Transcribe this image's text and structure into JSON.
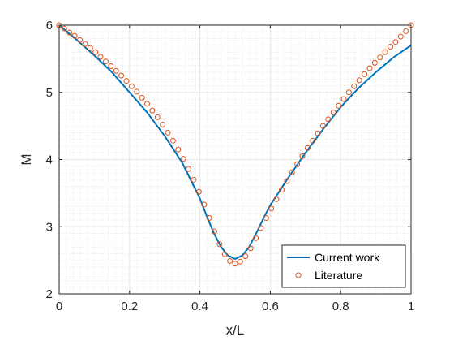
{
  "chart_data": {
    "type": "line",
    "xlabel": "x/L",
    "ylabel": "M",
    "xlim": [
      0,
      1
    ],
    "ylim": [
      2,
      6
    ],
    "x_ticks": [
      "0",
      "0.2",
      "0.4",
      "0.6",
      "0.8",
      "1"
    ],
    "y_ticks": [
      "2",
      "3",
      "4",
      "5",
      "6"
    ],
    "grid": true,
    "minor_grid": true,
    "legend_position": "bottom-right",
    "series": [
      {
        "name": "Current work",
        "style": "line",
        "color": "#0072BD",
        "x": [
          0,
          0.05,
          0.1,
          0.15,
          0.2,
          0.25,
          0.3,
          0.35,
          0.4,
          0.42,
          0.44,
          0.46,
          0.48,
          0.5,
          0.52,
          0.54,
          0.56,
          0.58,
          0.6,
          0.65,
          0.7,
          0.75,
          0.8,
          0.85,
          0.9,
          0.95,
          1.0
        ],
        "y": [
          6.0,
          5.78,
          5.55,
          5.3,
          5.0,
          4.7,
          4.35,
          3.95,
          3.42,
          3.15,
          2.9,
          2.7,
          2.57,
          2.52,
          2.57,
          2.7,
          2.9,
          3.12,
          3.32,
          3.72,
          4.1,
          4.45,
          4.78,
          5.06,
          5.3,
          5.52,
          5.7
        ]
      },
      {
        "name": "Literature",
        "style": "marker",
        "color": "#D95319",
        "x": [
          0,
          0.0147,
          0.0294,
          0.0441,
          0.0588,
          0.0735,
          0.0882,
          0.1029,
          0.1176,
          0.1324,
          0.1471,
          0.1618,
          0.1765,
          0.1912,
          0.2059,
          0.2206,
          0.2353,
          0.25,
          0.2647,
          0.2794,
          0.2941,
          0.3088,
          0.3235,
          0.3382,
          0.3529,
          0.3676,
          0.3824,
          0.3971,
          0.4118,
          0.4265,
          0.4412,
          0.4559,
          0.4706,
          0.4853,
          0.5,
          0.5147,
          0.5294,
          0.5441,
          0.5588,
          0.5735,
          0.5882,
          0.6029,
          0.6176,
          0.6324,
          0.6471,
          0.6618,
          0.6765,
          0.6912,
          0.7059,
          0.7206,
          0.7353,
          0.75,
          0.7647,
          0.7794,
          0.7941,
          0.8088,
          0.8235,
          0.8382,
          0.8529,
          0.8676,
          0.8824,
          0.8971,
          0.9118,
          0.9265,
          0.9412,
          0.9559,
          0.9706,
          0.9853,
          1.0
        ],
        "y": [
          6.0,
          5.95,
          5.89,
          5.84,
          5.78,
          5.72,
          5.66,
          5.6,
          5.53,
          5.46,
          5.39,
          5.32,
          5.25,
          5.17,
          5.09,
          5.01,
          4.92,
          4.83,
          4.73,
          4.63,
          4.52,
          4.4,
          4.28,
          4.15,
          4.01,
          3.86,
          3.7,
          3.52,
          3.33,
          3.13,
          2.93,
          2.74,
          2.59,
          2.49,
          2.45,
          2.48,
          2.56,
          2.68,
          2.83,
          2.98,
          3.13,
          3.27,
          3.41,
          3.55,
          3.68,
          3.81,
          3.93,
          4.05,
          4.17,
          4.28,
          4.39,
          4.5,
          4.6,
          4.7,
          4.8,
          4.9,
          5.0,
          5.09,
          5.18,
          5.27,
          5.36,
          5.44,
          5.52,
          5.6,
          5.68,
          5.75,
          5.83,
          5.91,
          6.0
        ]
      }
    ]
  }
}
